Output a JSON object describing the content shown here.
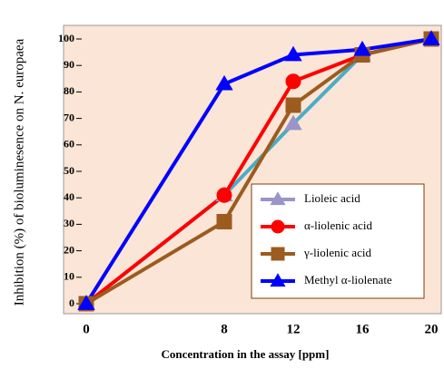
{
  "chart_data": {
    "type": "line",
    "xlabel": "Concentration in the assay [ppm]",
    "ylabel": "Inhibition (%) of bioluminesence on N. europaea",
    "x": [
      0,
      8,
      12,
      16,
      20
    ],
    "xlim": [
      0,
      20
    ],
    "xticks": [
      0,
      8,
      12,
      16,
      20
    ],
    "ylim": [
      0,
      100
    ],
    "yticks": [
      0,
      10,
      20,
      30,
      40,
      50,
      60,
      70,
      80,
      90,
      100
    ],
    "legend": "lower right",
    "series": [
      {
        "name": "Lioleic acid",
        "color": "#4bacc6",
        "marker_color": "#9a94c8",
        "marker": "triangle",
        "values": [
          0,
          41,
          68,
          94,
          100
        ]
      },
      {
        "name": "α-liolenic acid",
        "color": "#ff0000",
        "marker": "circle",
        "values": [
          0,
          41,
          84,
          94,
          100
        ]
      },
      {
        "name": "γ-liolenic acid",
        "color": "#9c5b1f",
        "marker": "square",
        "values": [
          0,
          31,
          75,
          94,
          100
        ]
      },
      {
        "name": "Methyl α-liolenate",
        "color": "#0000ff",
        "marker": "triangle",
        "values": [
          0,
          83,
          94,
          96,
          100
        ]
      }
    ]
  }
}
